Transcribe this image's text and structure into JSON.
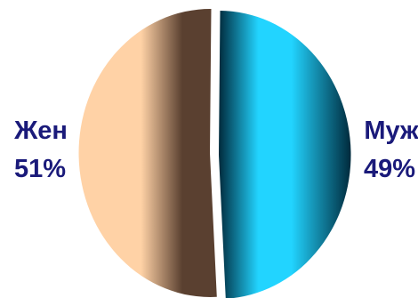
{
  "chart_data": {
    "type": "pie",
    "title": "",
    "legend": "none",
    "slices": [
      {
        "label": "Муж",
        "value": 49,
        "display": "49%",
        "color_light": "#22d4ff",
        "color_dark": "#002a3c"
      },
      {
        "label": "Жен",
        "value": 51,
        "display": "51%",
        "color_light": "#ffd2a6",
        "color_dark": "#5a4030"
      }
    ],
    "label_color": "#1a1a7a"
  }
}
